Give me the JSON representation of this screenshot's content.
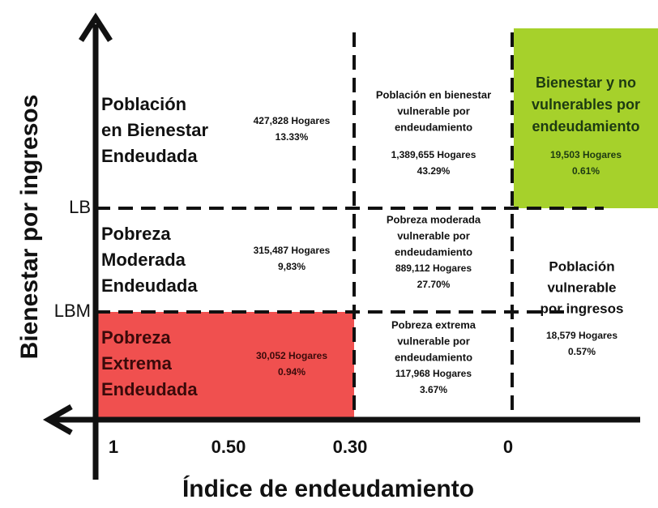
{
  "axes": {
    "y_label": "Bienestar por ingresos",
    "x_label": "Índice de endeudamiento",
    "y_markers": [
      "LB",
      "LBM"
    ],
    "x_ticks": [
      "1",
      "0.50",
      "0.30",
      "0"
    ]
  },
  "cells": [
    {
      "label": [
        "Población",
        "en Bienestar",
        "Endeudada"
      ],
      "households": "427,828 Hogares",
      "share": "13.33%"
    },
    {
      "label": [
        "Población en bienestar",
        "vulnerable por",
        "endeudamiento"
      ],
      "households": "1,389,655 Hogares",
      "share": "43.29%"
    },
    {
      "label": [
        "Bienestar y no",
        "vulnerables por",
        "endeudamiento"
      ],
      "households": "19,503 Hogares",
      "share": "0.61%"
    },
    {
      "label": [
        "Pobreza",
        "Moderada",
        "Endeudada"
      ],
      "households": "315,487 Hogares",
      "share": "9,83%"
    },
    {
      "label": [
        "Pobreza moderada",
        "vulnerable por",
        "endeudamiento"
      ],
      "households": "889,112 Hogares",
      "share": "27.70%"
    },
    {
      "label": [
        "Población",
        "vulnerable",
        "por ingresos"
      ],
      "households": "18,579 Hogares",
      "share": "0.57%"
    },
    {
      "label": [
        "Pobreza",
        "Extrema",
        "Endeudada"
      ],
      "households": "30,052 Hogares",
      "share": "0.94%"
    },
    {
      "label": [
        "Pobreza extrema",
        "vulnerable por",
        "endeudamiento"
      ],
      "households": "117,968 Hogares",
      "share": "3.67%"
    }
  ]
}
